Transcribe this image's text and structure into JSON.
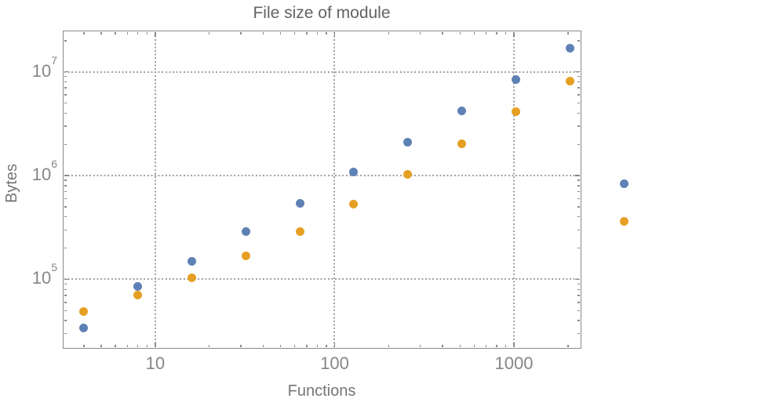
{
  "title": "File size of module",
  "chart_data": {
    "type": "scatter",
    "title": "File size of module",
    "xlabel": "Functions",
    "ylabel": "Bytes",
    "x_scale": "log",
    "y_scale": "log",
    "xlim": [
      3.05,
      2330
    ],
    "ylim": [
      22200,
      25000000
    ],
    "grid": "dotted gray lines at decade positions, on",
    "legend": "none",
    "marker": "filled circle ~11px diameter",
    "clipping_note": "x=4096 points are drawn outside the right frame edge (unclipped)",
    "x_major_ticks": [
      {
        "value": 10,
        "label": "10"
      },
      {
        "value": 100,
        "label": "100"
      },
      {
        "value": 1000,
        "label": "1000"
      }
    ],
    "x_minor_ticks": [
      4,
      5,
      6,
      7,
      8,
      9,
      20,
      30,
      40,
      50,
      60,
      70,
      80,
      90,
      200,
      300,
      400,
      500,
      600,
      700,
      800,
      900,
      2000
    ],
    "y_major_ticks": [
      {
        "value": 100000,
        "base": "10",
        "exp": "5"
      },
      {
        "value": 1000000,
        "base": "10",
        "exp": "6"
      },
      {
        "value": 10000000,
        "base": "10",
        "exp": "7"
      }
    ],
    "y_minor_ticks": [
      30000,
      40000,
      50000,
      60000,
      70000,
      80000,
      90000,
      200000,
      300000,
      400000,
      500000,
      600000,
      700000,
      800000,
      900000,
      2000000,
      3000000,
      4000000,
      5000000,
      6000000,
      7000000,
      8000000,
      9000000,
      20000000
    ],
    "grid_x_values": [
      10,
      100,
      1000
    ],
    "grid_y_values": [
      100000,
      1000000,
      10000000
    ],
    "x": [
      4,
      8,
      16,
      32,
      64,
      128,
      256,
      512,
      1024,
      2048,
      4096
    ],
    "series": [
      {
        "name": "series-1-blue",
        "color": "#5E81B5",
        "values": [
          34000,
          85000,
          150000,
          290000,
          540000,
          1090000,
          2110000,
          4230000,
          8500000,
          17000000,
          840000
        ]
      },
      {
        "name": "series-2-orange",
        "color": "#E5A024",
        "values": [
          49000,
          70000,
          104000,
          167000,
          290000,
          535000,
          1020000,
          2040000,
          4100000,
          8200000,
          360000
        ]
      }
    ]
  },
  "style": {
    "background": "#ffffff",
    "frame_color": "#898989",
    "grid_color": "#a2a2a2",
    "title_color": "#636363",
    "axis_label_color": "#757575",
    "tick_label_color": "#868686"
  }
}
